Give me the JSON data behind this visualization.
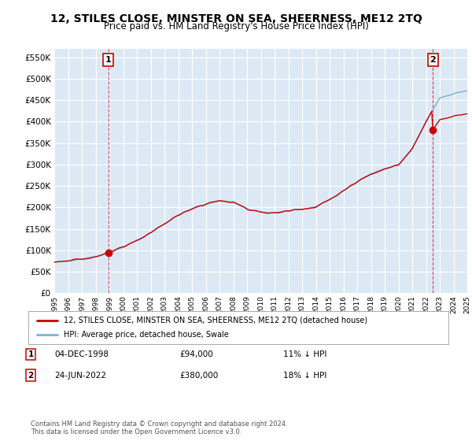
{
  "title": "12, STILES CLOSE, MINSTER ON SEA, SHEERNESS, ME12 2TQ",
  "subtitle": "Price paid vs. HM Land Registry's House Price Index (HPI)",
  "title_fontsize": 10,
  "subtitle_fontsize": 8.5,
  "background_color": "#ffffff",
  "plot_bg_color": "#dce9f5",
  "grid_color": "#ffffff",
  "hpi_color": "#7bafd4",
  "price_color": "#cc0000",
  "legend_line1": "12, STILES CLOSE, MINSTER ON SEA, SHEERNESS, ME12 2TQ (detached house)",
  "legend_line2": "HPI: Average price, detached house, Swale",
  "annotation1": {
    "label": "1",
    "date": "04-DEC-1998",
    "price": "£94,000",
    "hpi": "11% ↓ HPI"
  },
  "annotation2": {
    "label": "2",
    "date": "24-JUN-2022",
    "price": "£380,000",
    "hpi": "18% ↓ HPI"
  },
  "footer": "Contains HM Land Registry data © Crown copyright and database right 2024.\nThis data is licensed under the Open Government Licence v3.0.",
  "yticks": [
    0,
    50000,
    100000,
    150000,
    200000,
    250000,
    300000,
    350000,
    400000,
    450000,
    500000,
    550000
  ],
  "ylim": [
    0,
    570000
  ],
  "sale1_month_idx": 47,
  "sale1_value": 94000,
  "sale2_month_idx": 330,
  "sale2_value": 380000,
  "n_months": 361
}
